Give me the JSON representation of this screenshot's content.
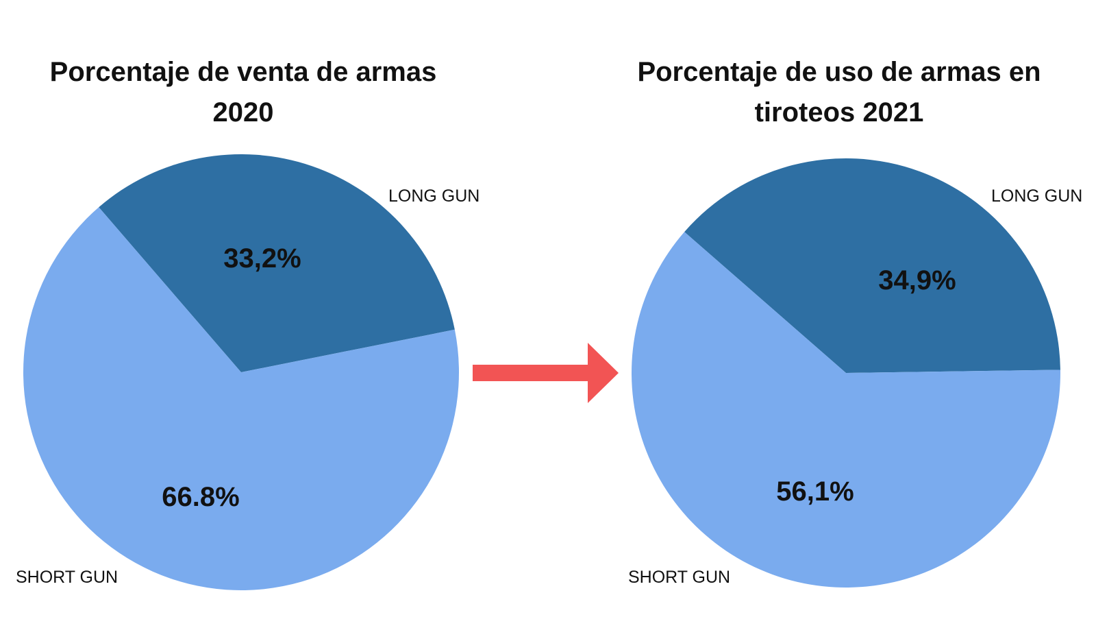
{
  "colors": {
    "long_gun": "#2e6fa3",
    "short_gun": "#7aabee",
    "arrow": "#f25454",
    "text": "#111111"
  },
  "chart_data": [
    {
      "type": "pie",
      "title": "Porcentaje de venta de armas 2020",
      "slices": [
        {
          "label": "LONG GUN",
          "value": 33.2,
          "value_label": "33,2%",
          "color": "#2e6fa3"
        },
        {
          "label": "SHORT GUN",
          "value": 66.8,
          "value_label": "66.8%",
          "color": "#7aabee"
        }
      ]
    },
    {
      "type": "pie",
      "title": "Porcentaje de uso de armas en tiroteos 2021",
      "slices": [
        {
          "label": "LONG GUN",
          "value": 34.9,
          "value_label": "34,9%",
          "color": "#2e6fa3"
        },
        {
          "label": "SHORT GUN",
          "value": 56.1,
          "value_label": "56,1%",
          "color": "#7aabee"
        }
      ]
    }
  ],
  "arrow": {
    "icon": "right-arrow-icon",
    "color": "#f25454"
  }
}
